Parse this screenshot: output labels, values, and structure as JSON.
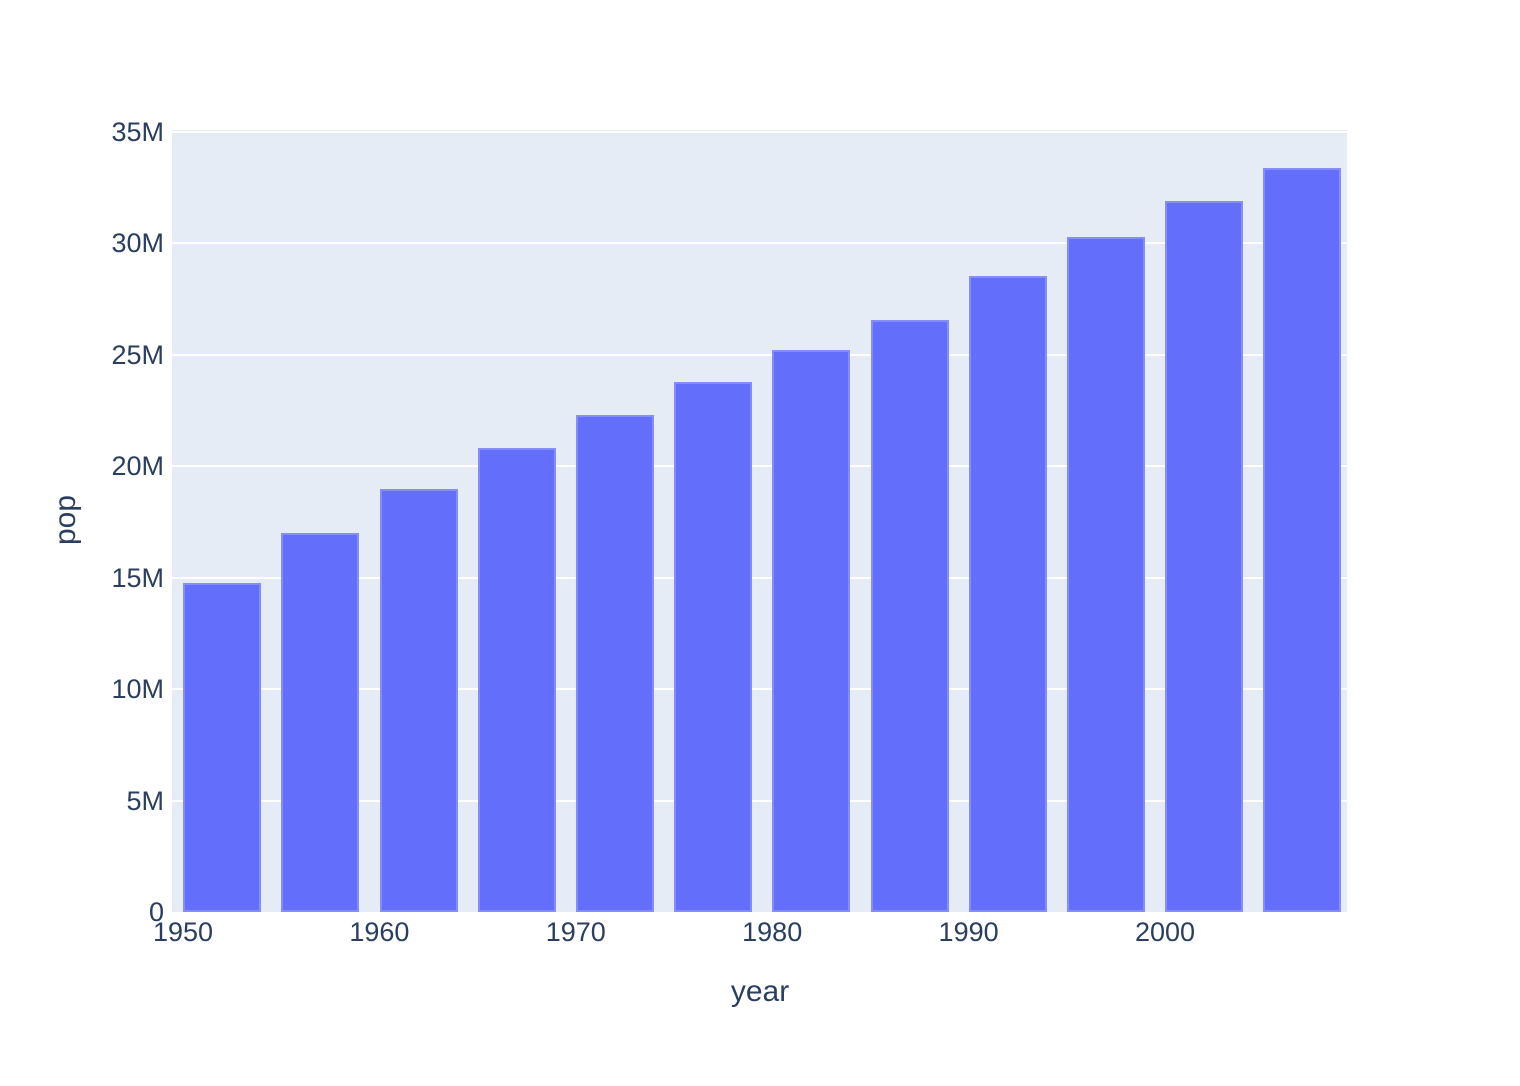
{
  "figure": {
    "background_color": "#ffffff",
    "plot_background_color": "#E5ECF6",
    "grid_color": "#ffffff",
    "bar_color": "#636EFA",
    "text_color": "#2A3F5F"
  },
  "chart_data": {
    "type": "bar",
    "title": "",
    "xlabel": "year",
    "ylabel": "pop",
    "x": [
      1952,
      1957,
      1962,
      1967,
      1972,
      1977,
      1982,
      1987,
      1992,
      1997,
      2002,
      2007
    ],
    "values": [
      14785584,
      17010154,
      18985849,
      20819767,
      22284500,
      23796400,
      25201900,
      26549700,
      28523502,
      30305843,
      31902268,
      33390141
    ],
    "series_name": "pop",
    "xlim": [
      1949.4,
      2009.8
    ],
    "ylim": [
      0,
      35000000
    ],
    "xticks": [
      {
        "value": 1950,
        "label": "1950"
      },
      {
        "value": 1960,
        "label": "1960"
      },
      {
        "value": 1970,
        "label": "1970"
      },
      {
        "value": 1980,
        "label": "1980"
      },
      {
        "value": 1990,
        "label": "1990"
      },
      {
        "value": 2000,
        "label": "2000"
      }
    ],
    "yticks": [
      {
        "value": 0,
        "label": "0"
      },
      {
        "value": 5000000,
        "label": "5M"
      },
      {
        "value": 10000000,
        "label": "10M"
      },
      {
        "value": 15000000,
        "label": "15M"
      },
      {
        "value": 20000000,
        "label": "20M"
      },
      {
        "value": 25000000,
        "label": "25M"
      },
      {
        "value": 30000000,
        "label": "30M"
      },
      {
        "value": 35000000,
        "label": "35M"
      }
    ],
    "grid": "horizontal-only",
    "legend": "none"
  }
}
